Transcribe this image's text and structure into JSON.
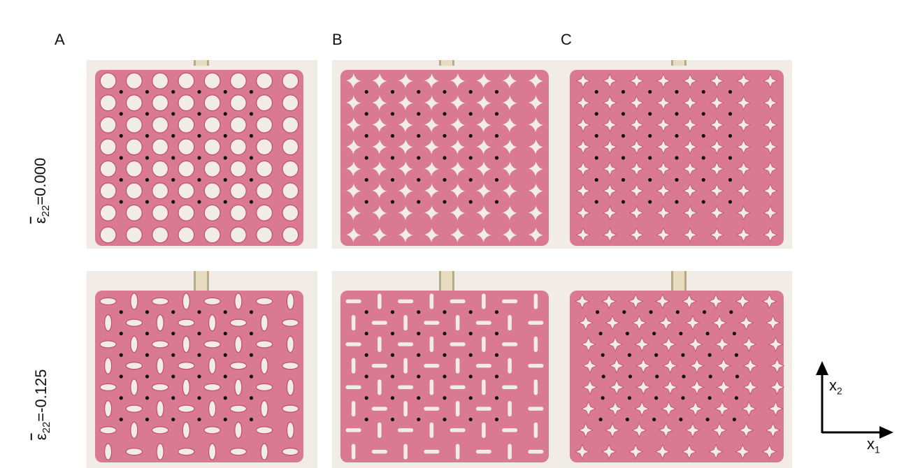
{
  "columns": [
    {
      "label": "A"
    },
    {
      "label": "B"
    },
    {
      "label": "C"
    }
  ],
  "rows": [
    {
      "strain_symbol": "ε",
      "strain_subscript": "22",
      "strain_value": "=0.000"
    },
    {
      "strain_symbol": "ε",
      "strain_subscript": "22",
      "strain_value": "=-0.125"
    }
  ],
  "axes": {
    "x1_symbol": "x",
    "x1_subscript": "1",
    "x2_symbol": "x",
    "x2_subscript": "2"
  },
  "colors": {
    "material": "#d97992",
    "material_dark": "#c44e6d",
    "background": "#f2ece6",
    "marker": "#111111",
    "clamp": "#b8a98a"
  }
}
